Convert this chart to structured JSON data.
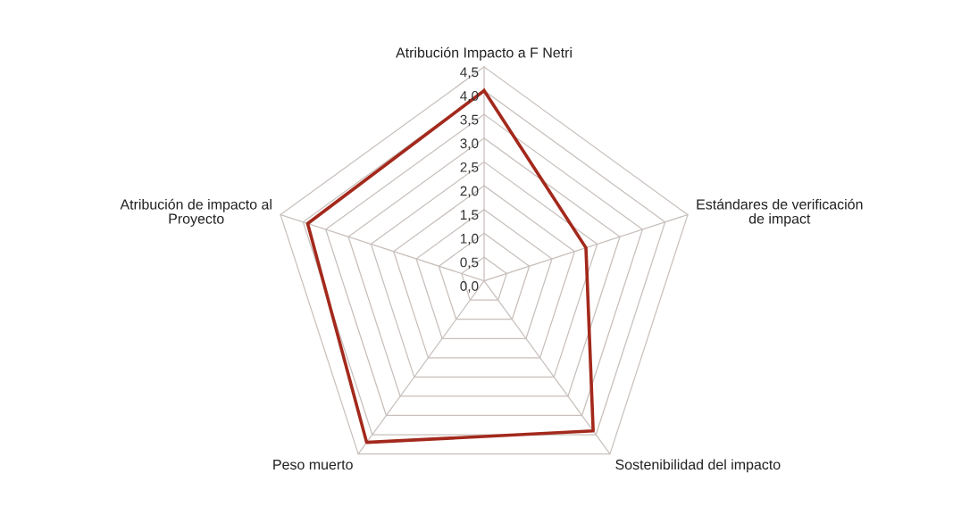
{
  "chart_data": {
    "type": "radar",
    "categories": [
      "Atribución Impacto a F Netri",
      "Estándares de verificación\nde impact",
      "Sostenibilidad del impacto",
      "Peso muerto",
      "Atribución de impacto al\nProyecto"
    ],
    "series": [
      {
        "color": "#a3291c",
        "values": [
          4.0,
          2.25,
          3.9,
          4.2,
          3.9
        ]
      }
    ],
    "ylim": [
      0,
      4.5
    ],
    "yticks": [
      {
        "value": 0,
        "label": "0,0"
      },
      {
        "value": 0.5,
        "label": "0,5"
      },
      {
        "value": 1.0,
        "label": "1,0"
      },
      {
        "value": 1.5,
        "label": "1,5"
      },
      {
        "value": 2.0,
        "label": "2,0"
      },
      {
        "value": 2.5,
        "label": "2,5"
      },
      {
        "value": 3.0,
        "label": "3,0"
      },
      {
        "value": 3.5,
        "label": "3,5"
      },
      {
        "value": 4.0,
        "label": "4,0"
      },
      {
        "value": 4.5,
        "label": "4,5"
      }
    ],
    "grid": true
  }
}
